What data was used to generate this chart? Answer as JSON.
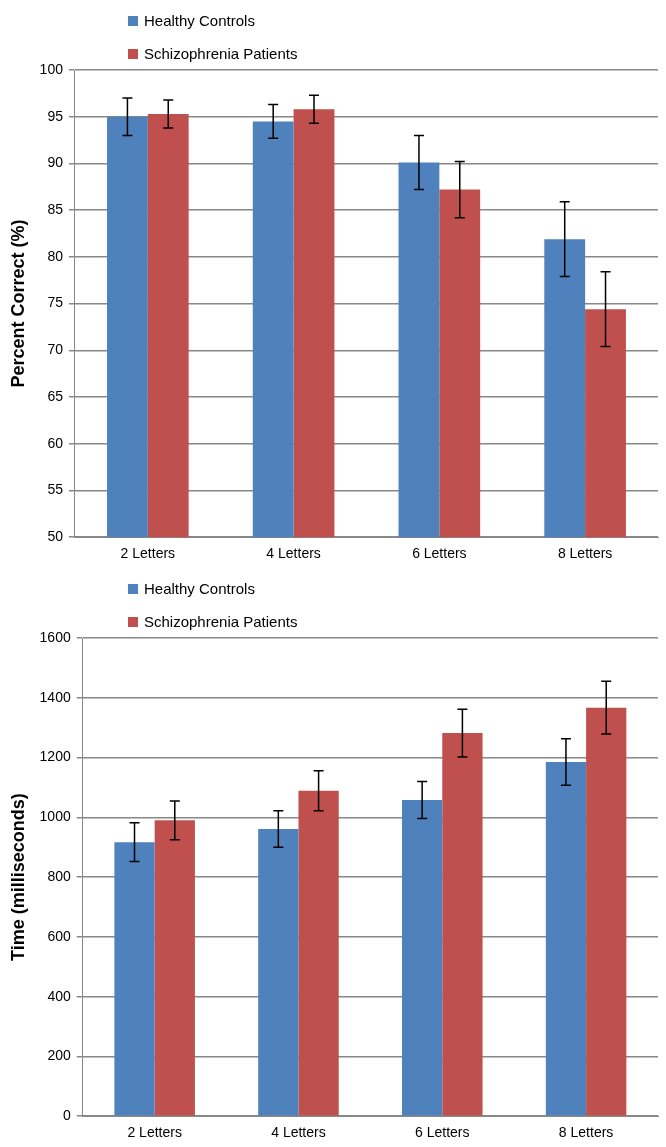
{
  "chart_data": [
    {
      "type": "bar",
      "ylabel": "Percent Correct (%)",
      "categories": [
        "2 Letters",
        "4 Letters",
        "6 Letters",
        "8 Letters"
      ],
      "series": [
        {
          "name": "Healthy Controls",
          "color": "#4f81bd",
          "values": [
            95.0,
            94.5,
            90.1,
            81.9
          ],
          "errors": [
            2.0,
            1.8,
            2.9,
            4.0
          ]
        },
        {
          "name": "Schizophrenia Patients",
          "color": "#c0504d",
          "values": [
            95.3,
            95.8,
            87.2,
            74.4
          ],
          "errors": [
            1.5,
            1.5,
            3.0,
            4.0
          ]
        }
      ],
      "ylim": [
        50,
        100
      ],
      "yticks": [
        50,
        55,
        60,
        65,
        70,
        75,
        80,
        85,
        90,
        95,
        100
      ],
      "grid": "y",
      "legend": "top left"
    },
    {
      "type": "bar",
      "ylabel": "Time (milliseconds)",
      "categories": [
        "2 Letters",
        "4 Letters",
        "6 Letters",
        "8 Letters"
      ],
      "series": [
        {
          "name": "Healthy Controls",
          "color": "#4f81bd",
          "values": [
            917,
            961,
            1058,
            1185
          ],
          "errors": [
            65,
            61,
            62,
            78
          ]
        },
        {
          "name": "Schizophrenia Patients",
          "color": "#c0504d",
          "values": [
            990,
            1089,
            1282,
            1367
          ],
          "errors": [
            65,
            67,
            80,
            88
          ]
        }
      ],
      "ylim": [
        0,
        1600
      ],
      "yticks": [
        0,
        200,
        400,
        600,
        800,
        1000,
        1200,
        1400,
        1600
      ],
      "grid": "y",
      "legend": "top left"
    }
  ]
}
